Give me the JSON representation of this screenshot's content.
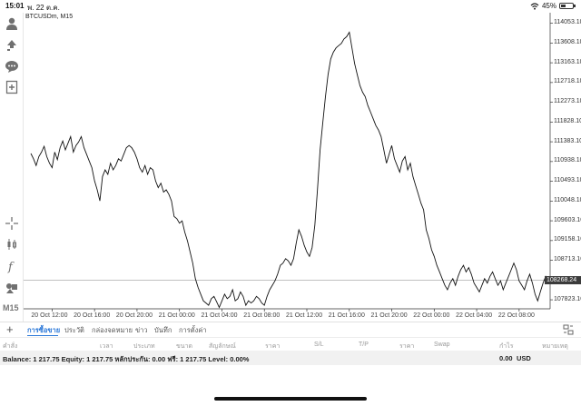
{
  "status_bar": {
    "time": "15:01",
    "date": "พ. 22 ต.ค.",
    "battery": "45%",
    "battery_level": 0.45
  },
  "toolbar": {
    "icons": [
      "account-icon",
      "trade-icon",
      "chat-icon",
      "add-chart-icon",
      "crosshair-icon",
      "candles-icon",
      "indicator-icon",
      "objects-icon"
    ],
    "timeframe": "M15"
  },
  "chart": {
    "symbol_label": "BTCUSDm, M15",
    "current_price": "108268.24",
    "line_color": "#111111",
    "grid_color": "#9a9a9a"
  },
  "chart_data": {
    "type": "line",
    "title": "BTCUSDm, M15",
    "xlabel": "",
    "ylabel": "",
    "ylim": [
      107620,
      114250
    ],
    "y_ticks": [
      114053.1,
      113608.1,
      113163.1,
      112718.1,
      112273.1,
      111828.1,
      111383.1,
      110938.1,
      110493.1,
      110048.1,
      109603.1,
      109158.1,
      108713.1,
      108268.24,
      107823.1
    ],
    "y_tick_labels": [
      "114053.10",
      "113608.10",
      "113163.10",
      "112718.10",
      "112273.10",
      "111828.10",
      "111383.10",
      "110938.10",
      "110493.10",
      "110048.10",
      "109603.10",
      "109158.10",
      "108713.10",
      "108268.24",
      "107823.10"
    ],
    "x_tick_labels": [
      "20 Oct 12:00",
      "20 Oct 16:00",
      "20 Oct 20:00",
      "21 Oct 00:00",
      "21 Oct 04:00",
      "21 Oct 08:00",
      "21 Oct 12:00",
      "21 Oct 16:00",
      "21 Oct 20:00",
      "22 Oct 00:00",
      "22 Oct 04:00",
      "22 Oct 08:00"
    ],
    "x_tick_index": [
      8,
      24,
      40,
      56,
      72,
      88,
      104,
      120,
      136,
      152,
      168,
      184
    ],
    "current_price": 108268.24,
    "grid": false,
    "series": [
      {
        "values": [
          111120,
          111000,
          110850,
          111050,
          111150,
          111280,
          111050,
          110900,
          110800,
          111150,
          110980,
          111250,
          111400,
          111200,
          111350,
          111500,
          111150,
          111300,
          111380,
          111500,
          111250,
          111100,
          110950,
          110800,
          110500,
          110300,
          110050,
          110600,
          110750,
          110650,
          110900,
          110750,
          110850,
          111000,
          110950,
          111100,
          111250,
          111300,
          111250,
          111150,
          111000,
          110800,
          110700,
          110850,
          110650,
          110800,
          110750,
          110500,
          110350,
          110450,
          110250,
          110300,
          110200,
          110050,
          109700,
          109650,
          109550,
          109600,
          109350,
          109150,
          108900,
          108650,
          108300,
          108100,
          107950,
          107800,
          107750,
          107700,
          107850,
          107900,
          107780,
          107650,
          107800,
          107950,
          107850,
          107900,
          108050,
          107800,
          107850,
          108000,
          107900,
          107700,
          107800,
          107750,
          107800,
          107900,
          107850,
          107750,
          107700,
          107900,
          108050,
          108150,
          108250,
          108400,
          108600,
          108650,
          108750,
          108700,
          108600,
          108750,
          109100,
          109400,
          109250,
          109050,
          108900,
          108800,
          109000,
          109500,
          110300,
          111200,
          111800,
          112400,
          112900,
          113250,
          113400,
          113500,
          113550,
          113600,
          113700,
          113750,
          113850,
          113500,
          113150,
          112900,
          112650,
          112500,
          112400,
          112200,
          112050,
          111900,
          111750,
          111650,
          111500,
          111200,
          110900,
          111100,
          111300,
          111000,
          110850,
          110700,
          110950,
          111050,
          110750,
          110900,
          110600,
          110400,
          110200,
          110000,
          109850,
          109400,
          109200,
          108950,
          108800,
          108600,
          108450,
          108300,
          108150,
          108050,
          108200,
          108300,
          108150,
          108350,
          108500,
          108600,
          108450,
          108550,
          108400,
          108200,
          108100,
          108000,
          108150,
          108300,
          108200,
          108350,
          108450,
          108300,
          108150,
          108250,
          108050,
          108200,
          108350,
          108500,
          108650,
          108500,
          108250,
          108150,
          108050,
          108250,
          108400,
          108200,
          107950,
          107800,
          108000,
          108200,
          108350,
          108250
        ]
      }
    ]
  },
  "tabs": {
    "add_label": "+",
    "items": [
      "การซื้อขาย",
      "ประวัติ",
      "กล่องจดหมาย",
      "ข่าว",
      "บันทึก",
      "การตั้งค่า"
    ]
  },
  "columns": [
    "คำสั่ง",
    "เวลา",
    "ประเภท",
    "ขนาด",
    "สัญลักษณ์",
    "ราคา",
    "S/L",
    "T/P",
    "ราคา",
    "Swap",
    "กำไร",
    "หมายเหตุ"
  ],
  "balance": {
    "text": "Balance: 1 217.75 Equity: 1 217.75 หลักประกัน: 0.00 ฟรี: 1 217.75 Level: 0.00%",
    "profit": "0.00",
    "currency": "USD"
  }
}
